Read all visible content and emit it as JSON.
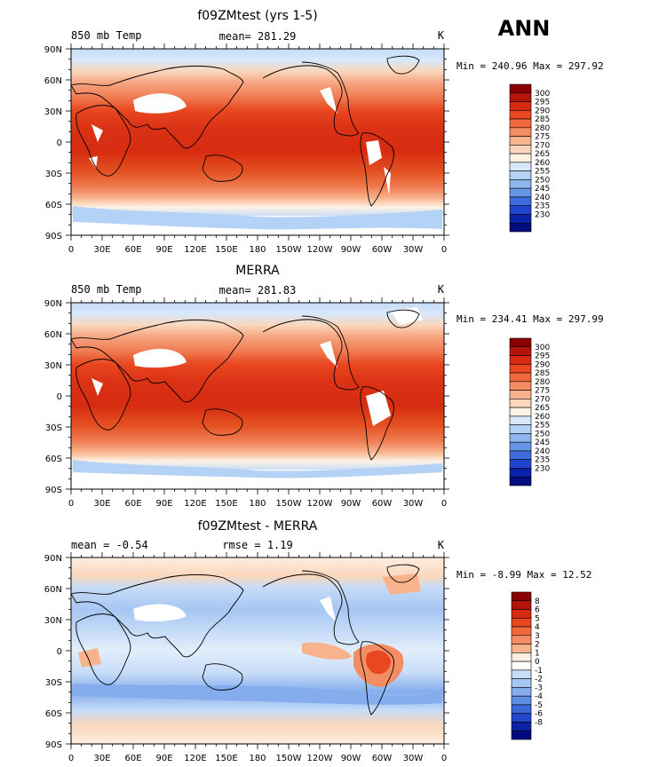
{
  "season": "ANN",
  "lat_ticks": [
    "90N",
    "60N",
    "30N",
    "0",
    "30S",
    "60S",
    "90S"
  ],
  "lon_ticks": [
    "0",
    "30E",
    "60E",
    "90E",
    "120E",
    "150E",
    "180",
    "150W",
    "120W",
    "90W",
    "60W",
    "30W",
    "0"
  ],
  "panels": [
    {
      "title": "f09ZMtest (yrs 1-5)",
      "left_label": "850 mb Temp",
      "center_label": "mean= 281.29",
      "units": "K",
      "minmax": "Min = 240.96 Max = 297.92",
      "kind": "abs",
      "colorbar": {
        "levels": [
          "300",
          "295",
          "290",
          "285",
          "280",
          "275",
          "270",
          "265",
          "260",
          "255",
          "250",
          "245",
          "240",
          "235",
          "230"
        ],
        "colors": [
          "#8a0000",
          "#b51508",
          "#d62b10",
          "#e8471f",
          "#f06a3d",
          "#f48d63",
          "#f8b38c",
          "#fad7bc",
          "#fdf2e4",
          "#d7e8fb",
          "#b4d2f6",
          "#8db6ef",
          "#6696e6",
          "#3f6cdd",
          "#1f45cf",
          "#0a22a8",
          "#000c80"
        ]
      }
    },
    {
      "title": "MERRA",
      "left_label": "850 mb Temp",
      "center_label": "mean= 281.83",
      "units": "K",
      "minmax": "Min = 234.41 Max = 297.99",
      "kind": "abs",
      "colorbar": {
        "levels": [
          "300",
          "295",
          "290",
          "285",
          "280",
          "275",
          "270",
          "265",
          "260",
          "255",
          "250",
          "245",
          "240",
          "235",
          "230"
        ],
        "colors": [
          "#8a0000",
          "#b51508",
          "#d62b10",
          "#e8471f",
          "#f06a3d",
          "#f48d63",
          "#f8b38c",
          "#fad7bc",
          "#fdf2e4",
          "#d7e8fb",
          "#b4d2f6",
          "#8db6ef",
          "#6696e6",
          "#3f6cdd",
          "#1f45cf",
          "#0a22a8",
          "#000c80"
        ]
      }
    },
    {
      "title": "f09ZMtest - MERRA",
      "left_label": "mean =   -0.54",
      "center_label": "rmse =    1.19",
      "units": "K",
      "minmax": "Min =  -8.99 Max =  12.52",
      "kind": "diff",
      "colorbar": {
        "levels": [
          "8",
          "6",
          "5",
          "4",
          "3",
          "2",
          "1",
          "0",
          "-1",
          "-2",
          "-3",
          "-4",
          "-5",
          "-6",
          "-8"
        ],
        "colors": [
          "#8a0000",
          "#b51508",
          "#d62b10",
          "#e8471f",
          "#f06a3d",
          "#f48d63",
          "#f8b38c",
          "#fdeee0",
          "#ffffff",
          "#c6dcf7",
          "#a6c6f3",
          "#85aced",
          "#5f8ce4",
          "#3d68da",
          "#2246c9",
          "#0b22a6",
          "#000c80"
        ]
      }
    }
  ]
}
